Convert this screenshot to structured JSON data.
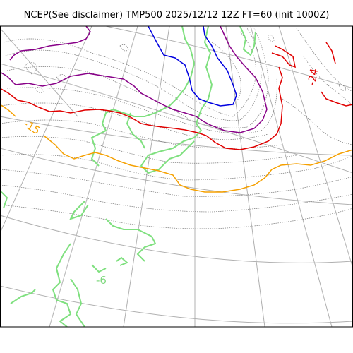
{
  "title": "NCEP(See disclaimer) TMP500 2025/12/12 12Z FT=60 (init 1000Z)",
  "contour_labels": [
    {
      "text": "-24",
      "color": "#e00000"
    },
    {
      "text": "-15",
      "color": "#f5a000"
    },
    {
      "text": "-6",
      "color": "#7fd97f"
    }
  ],
  "colors": {
    "graticule": "#b0b0b0",
    "coastline": "#7a7a7a",
    "isotherm_minus24": "#e00000",
    "isotherm_minus15": "#f5a000",
    "isotherm_cold_purple": "#880088",
    "isotherm_cold_blue": "#0000e0",
    "isotherm_minus6": "#7fe07f",
    "frame": "#000000"
  }
}
